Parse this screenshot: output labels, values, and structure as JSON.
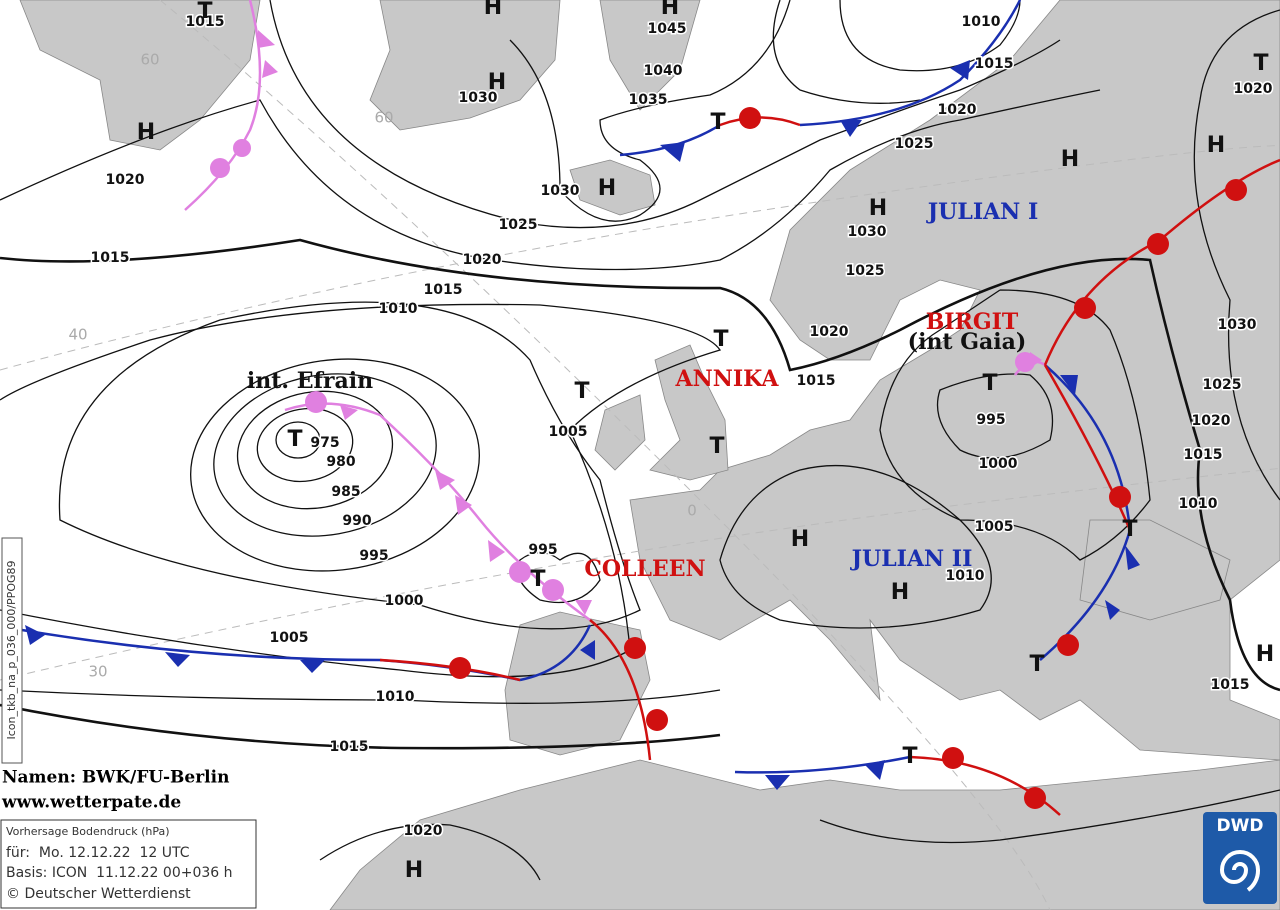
{
  "isobar_labels": [
    1015,
    1020,
    1015,
    1025,
    1020,
    1015,
    1010,
    1030,
    1030,
    1045,
    1040,
    1035,
    1010,
    1015,
    1020,
    1025,
    1030,
    1025,
    1020,
    1015,
    1020,
    1030,
    1025,
    1020,
    1015,
    1010,
    1015,
    995,
    1000,
    1005,
    1010,
    975,
    980,
    985,
    990,
    995,
    1000,
    1005,
    1010,
    1015,
    1005,
    995,
    1020
  ],
  "pressure_centers": [
    "T",
    "H",
    "H",
    "H",
    "H",
    "H",
    "T",
    "H",
    "H",
    "H",
    "T",
    "T",
    "T",
    "T",
    "T",
    "T",
    "T",
    "T",
    "T",
    "H",
    "H",
    "H",
    "T",
    "H"
  ],
  "system_names": [
    "int. Efrain",
    "COLLEEN",
    "ANNIKA",
    "JULIAN I",
    "BIRGIT",
    "(int Gaia)",
    "JULIAN II"
  ],
  "latitude_labels": [
    "60",
    "60",
    "40",
    "30",
    "0"
  ],
  "credits": {
    "names": "Namen: BWK/FU-Berlin",
    "website": "www.wetterpate.de"
  },
  "legend_box": {
    "title": "Vorhersage Bodendruck (hPa)",
    "valid": "für:  Mo. 12.12.22  12 UTC",
    "basis": "Basis: ICON  11.12.22 00+036 h",
    "copyright": "© Deutscher Wetterdienst"
  },
  "run_code": "Icon_tkb_na_p_036_000/PPOG89",
  "logo": "DWD"
}
